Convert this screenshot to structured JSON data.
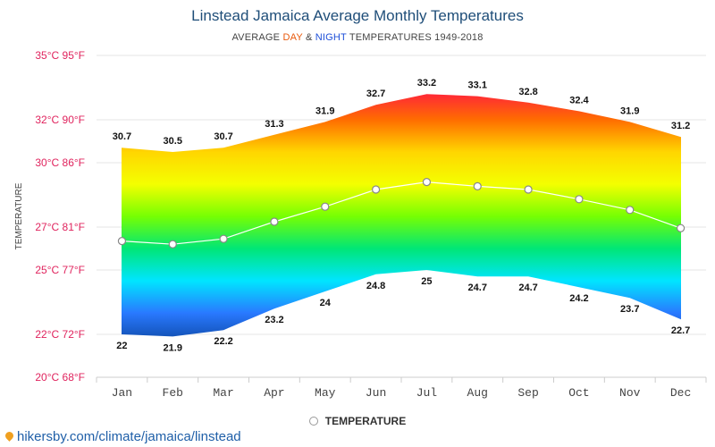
{
  "title": "Linstead Jamaica Average Monthly Temperatures",
  "subtitle": {
    "prefix": "AVERAGE ",
    "day": "DAY",
    "amp": " & ",
    "night": "NIGHT",
    "suffix": " TEMPERATURES 1949-2018"
  },
  "legend": {
    "label": "TEMPERATURE"
  },
  "footer": {
    "link_text": "hikersby.com/climate/jamaica/linstead"
  },
  "colors": {
    "axis_labels": "#e0245e",
    "line": "#ffffff",
    "grid": "#e6e6e6",
    "gradient": [
      "#ff1744",
      "#ff6d00",
      "#ffd600",
      "#f4ff00",
      "#76ff03",
      "#00e676",
      "#00e5ff",
      "#2979ff",
      "#0d47a1"
    ]
  },
  "chart_data": {
    "type": "area",
    "categories": [
      "Jan",
      "Feb",
      "Mar",
      "Apr",
      "May",
      "Jun",
      "Jul",
      "Aug",
      "Sep",
      "Oct",
      "Nov",
      "Dec"
    ],
    "series": [
      {
        "values": [
          30.7,
          30.5,
          30.7,
          31.3,
          31.9,
          32.7,
          33.2,
          33.1,
          32.8,
          32.4,
          31.9,
          31.2
        ]
      },
      {
        "values": [
          22,
          21.9,
          22.2,
          23.2,
          24,
          24.8,
          25,
          24.7,
          24.7,
          24.2,
          23.7,
          22.7
        ]
      },
      {
        "name": "TEMPERATURE",
        "values": [
          26.35,
          26.2,
          26.45,
          27.25,
          27.95,
          28.75,
          29.1,
          28.9,
          28.75,
          28.3,
          27.8,
          26.95
        ]
      }
    ],
    "ylabel": "TEMPERATURE",
    "ylim": [
      20,
      35
    ],
    "y_ticks": [
      "20°C 68°F",
      "22°C 72°F",
      "25°C 77°F",
      "27°C 81°F",
      "30°C 86°F",
      "32°C 90°F",
      "35°C 95°F"
    ],
    "grid": true,
    "legend_position": "bottom-center"
  }
}
